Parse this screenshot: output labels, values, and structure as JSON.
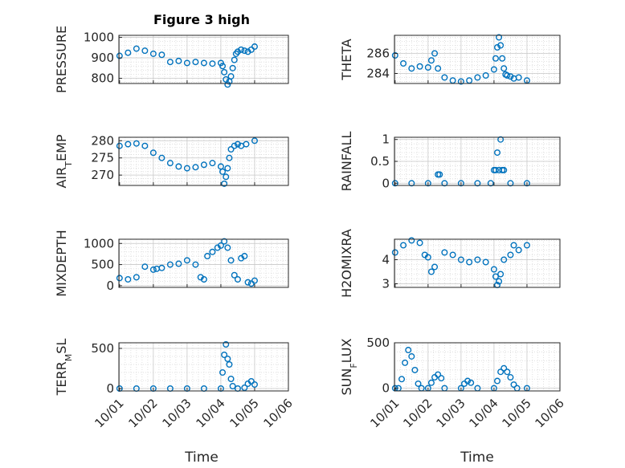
{
  "figure": {
    "title": "Figure 3 high"
  },
  "x_axis": {
    "label": "Time",
    "tick_labels": [
      "10/01",
      "10/02",
      "10/03",
      "10/04",
      "10/05",
      "10/06"
    ]
  },
  "colors": {
    "marker": "#0072BD",
    "axes": "#262626",
    "grid": "#d9d9d9"
  },
  "chart_data": [
    {
      "type": "scatter",
      "ylabel": "PRESSURE",
      "ylim": [
        775,
        1010
      ],
      "yticks": [
        800,
        900,
        1000
      ],
      "x_days": [
        0,
        0.25,
        0.5,
        0.75,
        1,
        1.25,
        1.5,
        1.75,
        2,
        2.25,
        2.5,
        2.75,
        3,
        3.05,
        3.1,
        3.15,
        3.2,
        3.25,
        3.3,
        3.35,
        3.4,
        3.45,
        3.5,
        3.6,
        3.7,
        3.8,
        3.9,
        4.0
      ],
      "values": [
        910,
        925,
        945,
        935,
        920,
        915,
        880,
        885,
        875,
        880,
        875,
        872,
        875,
        860,
        830,
        795,
        770,
        785,
        810,
        850,
        890,
        920,
        930,
        940,
        935,
        930,
        940,
        955
      ]
    },
    {
      "type": "scatter",
      "ylabel": "THETA",
      "ylim": [
        283,
        287.8
      ],
      "yticks": [
        284,
        286
      ],
      "x_days": [
        0,
        0.25,
        0.5,
        0.75,
        1,
        1.1,
        1.2,
        1.3,
        1.5,
        1.75,
        2,
        2.25,
        2.5,
        2.75,
        3,
        3.05,
        3.1,
        3.15,
        3.2,
        3.25,
        3.3,
        3.35,
        3.4,
        3.5,
        3.6,
        3.75,
        4.0
      ],
      "values": [
        285.8,
        285,
        284.5,
        284.7,
        284.6,
        285.3,
        286,
        284.5,
        283.6,
        283.3,
        283.2,
        283.3,
        283.6,
        283.8,
        284.4,
        285.5,
        286.6,
        287.6,
        286.8,
        285.5,
        284.5,
        283.9,
        283.8,
        283.7,
        283.5,
        283.6,
        283.3
      ]
    },
    {
      "type": "scatter",
      "ylabel": "AIR_TEMP",
      "ylim": [
        267,
        281
      ],
      "yticks": [
        270,
        275,
        280
      ],
      "x_days": [
        0,
        0.25,
        0.5,
        0.75,
        1,
        1.25,
        1.5,
        1.75,
        2,
        2.25,
        2.5,
        2.75,
        3,
        3.05,
        3.1,
        3.15,
        3.2,
        3.25,
        3.3,
        3.4,
        3.5,
        3.6,
        3.75,
        4.0
      ],
      "values": [
        278.5,
        279,
        279.2,
        278.5,
        276.5,
        275,
        273.5,
        272.5,
        272,
        272.3,
        273,
        273.5,
        272.5,
        271,
        267.5,
        269.5,
        272,
        275,
        277.5,
        278.5,
        279,
        278.5,
        279,
        280
      ]
    },
    {
      "type": "scatter",
      "ylabel": "RAINFALL",
      "ylim": [
        -0.05,
        1.05
      ],
      "yticks": [
        0,
        0.5,
        1
      ],
      "x_days": [
        0,
        0.5,
        1,
        1.3,
        1.35,
        1.5,
        2,
        2.5,
        2.9,
        3.0,
        3.05,
        3.1,
        3.15,
        3.2,
        3.25,
        3.3,
        3.5,
        4.0
      ],
      "values": [
        0,
        0,
        0,
        0.2,
        0.2,
        0,
        0,
        0,
        0,
        0.3,
        0.3,
        0.7,
        0.3,
        1,
        0.3,
        0.3,
        0,
        0
      ]
    },
    {
      "type": "scatter",
      "ylabel": "MIXDEPTH",
      "ylim": [
        -40,
        1100
      ],
      "yticks": [
        0,
        500,
        1000
      ],
      "x_days": [
        0,
        0.25,
        0.5,
        0.75,
        1,
        1.1,
        1.25,
        1.5,
        1.75,
        2,
        2.25,
        2.4,
        2.5,
        2.6,
        2.75,
        2.9,
        3,
        3.1,
        3.2,
        3.3,
        3.4,
        3.5,
        3.6,
        3.7,
        3.8,
        3.9,
        4.0
      ],
      "values": [
        180,
        150,
        200,
        450,
        380,
        400,
        420,
        500,
        520,
        600,
        500,
        200,
        150,
        700,
        800,
        900,
        950,
        1050,
        900,
        600,
        250,
        150,
        650,
        700,
        80,
        50,
        120
      ]
    },
    {
      "type": "scatter",
      "ylabel": "H2OMIXRA",
      "ylim": [
        2.85,
        4.85
      ],
      "yticks": [
        3,
        4
      ],
      "x_days": [
        0,
        0.25,
        0.5,
        0.75,
        0.9,
        1,
        1.1,
        1.2,
        1.5,
        1.75,
        2,
        2.25,
        2.5,
        2.75,
        3,
        3.05,
        3.1,
        3.15,
        3.2,
        3.3,
        3.5,
        3.6,
        3.75,
        4.0
      ],
      "values": [
        4.3,
        4.6,
        4.8,
        4.7,
        4.2,
        4.1,
        3.5,
        3.7,
        4.3,
        4.2,
        4.0,
        3.9,
        4.0,
        3.9,
        3.6,
        3.3,
        2.95,
        3.1,
        3.4,
        4.0,
        4.2,
        4.6,
        4.4,
        4.6
      ]
    },
    {
      "type": "scatter",
      "ylabel": "TERR_MSL",
      "ylim": [
        -30,
        570
      ],
      "yticks": [
        0,
        500
      ],
      "x_days": [
        0,
        0.5,
        1,
        1.5,
        2,
        2.5,
        3,
        3.05,
        3.1,
        3.15,
        3.2,
        3.25,
        3.3,
        3.35,
        3.5,
        3.7,
        3.8,
        3.9,
        4.0
      ],
      "values": [
        0,
        0,
        0,
        0,
        0,
        0,
        0,
        200,
        420,
        550,
        370,
        300,
        120,
        30,
        0,
        10,
        60,
        90,
        50
      ]
    },
    {
      "type": "scatter",
      "ylabel": "SUN_FLUX",
      "ylim": [
        -30,
        500
      ],
      "yticks": [
        0,
        500
      ],
      "x_days": [
        0,
        0.1,
        0.2,
        0.3,
        0.4,
        0.5,
        0.6,
        0.7,
        0.8,
        1,
        1.1,
        1.2,
        1.3,
        1.4,
        1.5,
        2,
        2.1,
        2.2,
        2.3,
        2.5,
        3,
        3.1,
        3.2,
        3.3,
        3.4,
        3.5,
        3.6,
        3.7,
        4.0
      ],
      "values": [
        0,
        0,
        100,
        280,
        420,
        350,
        200,
        50,
        0,
        0,
        60,
        120,
        150,
        110,
        0,
        0,
        50,
        80,
        60,
        0,
        0,
        80,
        180,
        220,
        180,
        120,
        40,
        0,
        0
      ]
    }
  ]
}
